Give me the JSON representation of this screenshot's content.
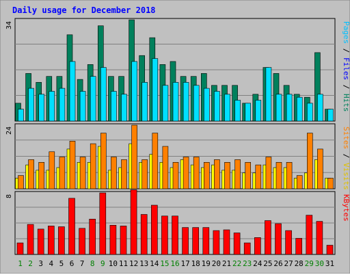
{
  "chart_data": {
    "type": "bar",
    "title": "Daily usage for December 2018",
    "categories": [
      "1",
      "2",
      "3",
      "4",
      "5",
      "6",
      "7",
      "8",
      "9",
      "10",
      "11",
      "12",
      "13",
      "14",
      "15",
      "16",
      "17",
      "18",
      "19",
      "20",
      "21",
      "22",
      "23",
      "24",
      "25",
      "26",
      "27",
      "28",
      "29",
      "30",
      "31"
    ],
    "weekend_days": [
      "1",
      "2",
      "8",
      "9",
      "15",
      "16",
      "22",
      "23",
      "29",
      "30"
    ],
    "panels": [
      {
        "id": "top",
        "ymax": 34,
        "ymax_label": "34",
        "side_label_parts": [
          "Pages",
          " / ",
          "Files",
          " / ",
          "Hits"
        ],
        "series": [
          {
            "name": "Hits",
            "color": "#00805c",
            "values": [
              6,
              16,
              13,
              15,
              15,
              29,
              14,
              19,
              32,
              15,
              15,
              34,
              22,
              28,
              19,
              20,
              15,
              15,
              16,
              12,
              12,
              12,
              6,
              9,
              18,
              16,
              12,
              9,
              8,
              23,
              4
            ]
          },
          {
            "name": "Files",
            "color": "#00e0ff",
            "values": [
              4,
              11,
              9,
              10,
              11,
              20,
              10,
              15,
              18,
              10,
              9,
              20,
              13,
              21,
              12,
              13,
              13,
              12,
              11,
              10,
              9,
              7,
              6,
              7,
              18,
              9,
              9,
              8,
              6,
              9,
              4
            ]
          }
        ]
      },
      {
        "id": "middle",
        "ymax": 24,
        "ymax_label": "24",
        "side_label_parts": [
          "Sites",
          " / ",
          "Visits"
        ],
        "series": [
          {
            "name": "Visits",
            "color": "#ffff00",
            "values": [
              4,
              9,
              7,
              7,
              8,
              15,
              10,
              10,
              16,
              7,
              8,
              17,
              10,
              13,
              10,
              8,
              11,
              9,
              8,
              9,
              7,
              7,
              6,
              6,
              9,
              8,
              8,
              4,
              6,
              11,
              4
            ]
          },
          {
            "name": "Sites",
            "color": "#ff8000",
            "values": [
              5,
              11,
              10,
              14,
              12,
              18,
              12,
              17,
              21,
              12,
              11,
              24,
              11,
              21,
              16,
              10,
              12,
              12,
              10,
              11,
              10,
              11,
              10,
              9,
              12,
              10,
              10,
              5,
              21,
              15,
              4
            ]
          }
        ]
      },
      {
        "id": "bottom",
        "ymax": 8,
        "ymax_label": "8",
        "side_label_parts": [
          "KBytes"
        ],
        "series": [
          {
            "name": "KBytes",
            "color": "#ff0000",
            "values": [
              1.5,
              3.9,
              3.3,
              3.7,
              3.6,
              7.3,
              3.4,
              4.6,
              8.0,
              3.8,
              3.7,
              8.4,
              5.2,
              6.4,
              5.0,
              5.0,
              3.5,
              3.5,
              3.5,
              3.1,
              3.2,
              2.8,
              1.5,
              2.2,
              4.4,
              4.0,
              3.1,
              2.1,
              5.1,
              4.3,
              1.2
            ]
          }
        ]
      }
    ]
  },
  "colors": {
    "frame": "#c0c0c0",
    "plot_bg": "#c0c0c0",
    "title_text": "#0000ff",
    "weekend_text": "#008000",
    "weekday_text": "#000000",
    "gridline": "#808080",
    "label_pages": "#00c0ff",
    "label_files": "#0000ff",
    "label_hits": "#00805c",
    "label_sites": "#ff8000",
    "label_visits": "#e0c000",
    "label_kbytes": "#ff0000",
    "separator": "#000000"
  }
}
